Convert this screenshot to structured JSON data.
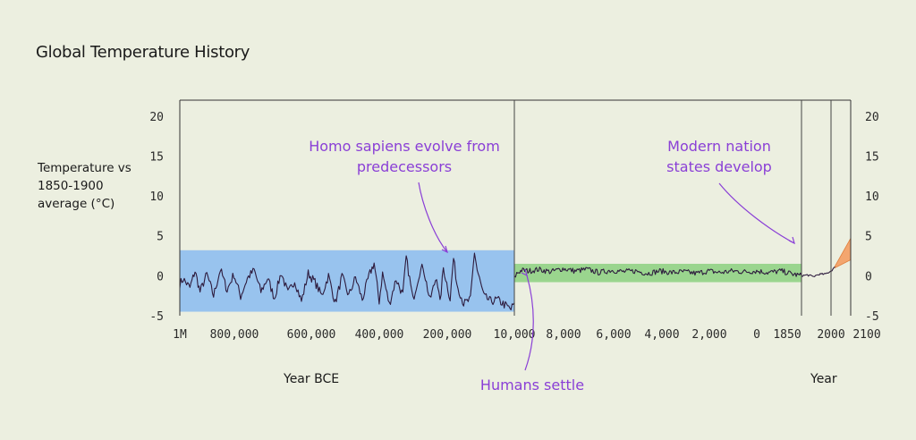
{
  "title": "Global Temperature History",
  "colors": {
    "background": "#ecefe0",
    "line": "#2d1b3d",
    "ice_age_band": "#98c3ee",
    "holocene_band": "#9ad58e",
    "projection": "#f3a66f",
    "annotation": "#8a3fd6"
  },
  "chart_data": {
    "type": "line",
    "title": "Global Temperature History",
    "ylabel": "Temperature vs 1850-1900 average (°C)",
    "xlabel_left": "Year BCE",
    "xlabel_right": "Year",
    "ylim": [
      -5,
      22
    ],
    "yticks": [
      20,
      15,
      10,
      5,
      0,
      -5
    ],
    "ytick_labels": [
      "20",
      "15",
      "10",
      "5",
      "0",
      "-5"
    ],
    "grid": false,
    "segments": [
      {
        "name": "1M-10,000 BCE",
        "scale": "years BCE",
        "x_range": [
          1000000,
          10000
        ],
        "xtick_labels": [
          "1M",
          "800,000",
          "600,000",
          "400,000",
          "200,000",
          "10,000"
        ],
        "band": {
          "y_range": [
            -4.5,
            3.2
          ],
          "color": "#98c3ee"
        },
        "series": {
          "x": [
            1000000,
            990000,
            970000,
            955000,
            940000,
            920000,
            900000,
            880000,
            860000,
            840000,
            820000,
            800000,
            780000,
            760000,
            740000,
            720000,
            700000,
            680000,
            660000,
            640000,
            620000,
            600000,
            580000,
            560000,
            540000,
            520000,
            500000,
            480000,
            460000,
            440000,
            425000,
            410000,
            400000,
            380000,
            360000,
            340000,
            330000,
            310000,
            290000,
            280000,
            260000,
            240000,
            230000,
            220000,
            200000,
            190000,
            180000,
            160000,
            140000,
            128000,
            120000,
            100000,
            80000,
            60000,
            40000,
            20000,
            10000
          ],
          "y": [
            -1.0,
            -0.4,
            -1.5,
            0.6,
            -2.0,
            0.2,
            -2.5,
            0.8,
            -1.8,
            0.2,
            -2.6,
            -0.3,
            0.7,
            -2.0,
            -0.3,
            -2.8,
            0.4,
            -2.2,
            -0.6,
            -3.2,
            0.3,
            -0.8,
            -2.5,
            0.0,
            -3.4,
            -0.1,
            -2.5,
            -0.2,
            -3.0,
            0.0,
            1.6,
            -3.2,
            0.3,
            -3.6,
            -0.4,
            -2.4,
            2.3,
            -3.0,
            0.5,
            1.2,
            -3.1,
            0.0,
            -3.5,
            1.0,
            -2.9,
            2.2,
            -1.0,
            -3.5,
            -3.0,
            3.0,
            0.7,
            -2.6,
            -3.2,
            -3.0,
            -3.6,
            -4.2,
            -3.4
          ]
        }
      },
      {
        "name": "10,000 BCE-1850",
        "scale": "years",
        "x_range": [
          -10000,
          1850
        ],
        "xtick_labels": [
          "8,000",
          "6,000",
          "4,000",
          "2,000",
          "0",
          "1850"
        ],
        "band": {
          "y_range": [
            -0.8,
            1.5
          ],
          "color": "#9ad58e"
        },
        "series": {
          "x": [
            -10000,
            -9900,
            -9700,
            -9400,
            -9000,
            -8500,
            -8000,
            -7500,
            -7000,
            -6500,
            -6000,
            -5500,
            -5000,
            -4500,
            -4000,
            -3500,
            -3000,
            -2500,
            -2000,
            -1500,
            -1000,
            -500,
            0,
            500,
            1000,
            1500,
            1850
          ],
          "y": [
            -0.3,
            0.3,
            0.7,
            0.6,
            0.8,
            0.5,
            0.9,
            0.6,
            0.8,
            0.4,
            0.7,
            0.5,
            0.6,
            0.3,
            0.6,
            0.4,
            0.5,
            0.3,
            0.6,
            0.4,
            0.6,
            0.5,
            0.6,
            0.4,
            0.6,
            0.2,
            0.0
          ]
        }
      },
      {
        "name": "1850-2000",
        "scale": "years",
        "x_range": [
          1850,
          2000
        ],
        "xtick_labels": [
          "2000"
        ],
        "series": {
          "x": [
            1850,
            1880,
            1910,
            1940,
            1970,
            2000
          ],
          "y": [
            0.0,
            0.1,
            -0.1,
            0.2,
            0.2,
            0.6
          ]
        }
      },
      {
        "name": "2000-2100",
        "scale": "years",
        "x_range": [
          2000,
          2100
        ],
        "xtick_labels": [
          "2100"
        ],
        "series": {
          "x": [
            2000,
            2020
          ],
          "y": [
            0.6,
            1.1
          ]
        },
        "projection": {
          "x": [
            2020,
            2100
          ],
          "upper": [
            1.2,
            4.7
          ],
          "lower": [
            1.0,
            2.0
          ],
          "color": "#f3a66f"
        }
      }
    ],
    "annotations": [
      {
        "text_lines": [
          "Homo sapiens evolve from",
          "predecessors"
        ],
        "points_to_x": 200000
      },
      {
        "text_lines": [
          "Modern nation",
          "states develop"
        ],
        "points_to_x": 1850
      },
      {
        "text_lines": [
          "Humans settle"
        ],
        "points_to_x": 10000
      }
    ]
  }
}
